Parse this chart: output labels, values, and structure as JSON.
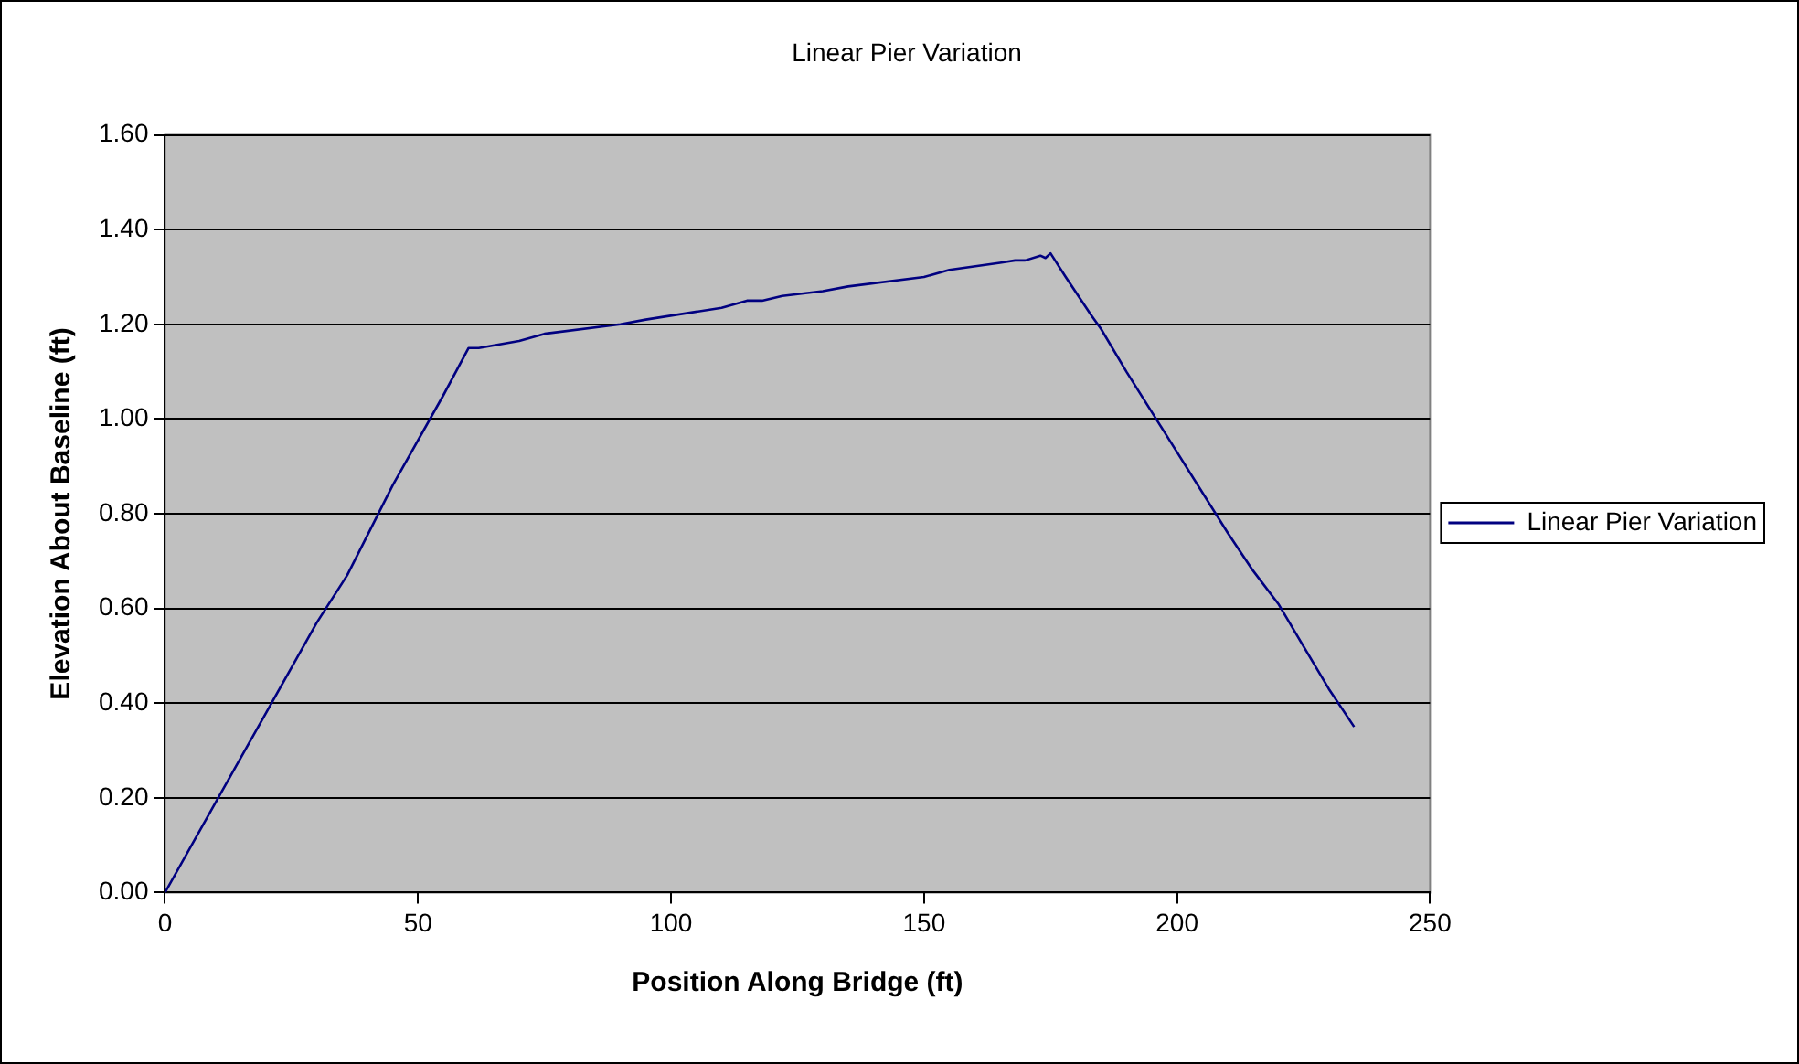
{
  "chart_data": {
    "type": "line",
    "title": "Linear Pier Variation",
    "xlabel": "Position Along Bridge (ft)",
    "ylabel": "Elevation About Baseline (ft)",
    "x": [
      0,
      10,
      20,
      30,
      36,
      45,
      55,
      58,
      60,
      62,
      70,
      75,
      90,
      95,
      110,
      115,
      118,
      122,
      130,
      135,
      150,
      155,
      165,
      168,
      170,
      173,
      174,
      175,
      178,
      183,
      185,
      190,
      200,
      210,
      215,
      220,
      225,
      230,
      235
    ],
    "series": [
      {
        "name": "Linear Pier Variation",
        "color": "#000080",
        "values": [
          0,
          0.19,
          0.38,
          0.57,
          0.67,
          0.86,
          1.05,
          1.11,
          1.15,
          1.15,
          1.165,
          1.18,
          1.2,
          1.21,
          1.235,
          1.25,
          1.25,
          1.26,
          1.27,
          1.28,
          1.3,
          1.315,
          1.33,
          1.335,
          1.335,
          1.345,
          1.34,
          1.35,
          1.3,
          1.22,
          1.19,
          1.1,
          0.93,
          0.76,
          0.68,
          0.61,
          0.52,
          0.43,
          0.35
        ]
      }
    ],
    "xlim": [
      0,
      250
    ],
    "xticks": [
      0,
      50,
      100,
      150,
      200,
      250
    ],
    "ylim": [
      0,
      1.6
    ],
    "yticks": [
      {
        "value": 0,
        "label": "0.00"
      },
      {
        "value": 0.2,
        "label": "0.20"
      },
      {
        "value": 0.4,
        "label": "0.40"
      },
      {
        "value": 0.6,
        "label": "0.60"
      },
      {
        "value": 0.8,
        "label": "0.80"
      },
      {
        "value": 1,
        "label": "1.00"
      },
      {
        "value": 1.2,
        "label": "1.20"
      },
      {
        "value": 1.4,
        "label": "1.40"
      },
      {
        "value": 1.6,
        "label": "1.60"
      }
    ],
    "grid": "y",
    "legend": "right",
    "marker": "none",
    "line_style": "solid"
  }
}
